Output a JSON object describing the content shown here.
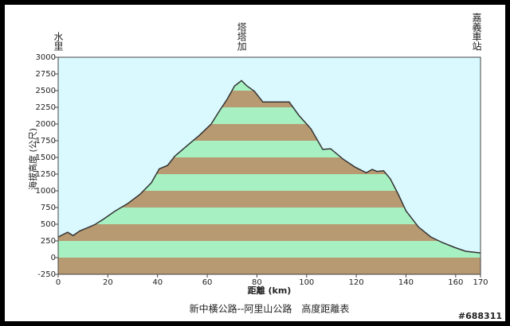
{
  "chart_data": {
    "type": "area",
    "title": "新中橫公路--阿里山公路　高度距離表",
    "x_label": "距離 (km)",
    "y_label": "海拔高度 (公尺)",
    "annotations": [
      {
        "x": 0,
        "label": "水里"
      },
      {
        "x": 73.8,
        "label": "塔塔加"
      },
      {
        "x": 170,
        "label": "嘉義車站"
      }
    ],
    "watermark": "#688311",
    "x": [
      0,
      3.8,
      6,
      8.7,
      12,
      15,
      18,
      23,
      28,
      33,
      37.5,
      40.7,
      44,
      47,
      52,
      56.8,
      61.6,
      64.8,
      68,
      71,
      73.8,
      76,
      79,
      82.4,
      85.6,
      93,
      96.9,
      101.7,
      106.5,
      109.7,
      114.5,
      119.3,
      124,
      126.4,
      128.3,
      131,
      133.7,
      137,
      140,
      145,
      150,
      154.6,
      159.4,
      164,
      170
    ],
    "values": [
      310,
      380,
      330,
      400,
      450,
      500,
      570,
      700,
      810,
      950,
      1120,
      1330,
      1380,
      1520,
      1680,
      1830,
      2000,
      2190,
      2370,
      2570,
      2650,
      2570,
      2490,
      2330,
      2330,
      2330,
      2130,
      1930,
      1620,
      1630,
      1480,
      1360,
      1270,
      1320,
      1290,
      1300,
      1180,
      940,
      700,
      460,
      310,
      226,
      155,
      95,
      70
    ],
    "line_color": "#333333",
    "band_colors": [
      "#b89a72",
      "#a6f0c2"
    ],
    "background": "#d9f9ff",
    "xlim": [
      0,
      170
    ],
    "xticks": [
      0,
      20,
      40,
      60,
      80,
      100,
      120,
      140,
      160,
      170
    ],
    "ylim": [
      -250,
      3000
    ],
    "yticks": [
      -250,
      0,
      250,
      500,
      750,
      1000,
      1250,
      1500,
      1750,
      2000,
      2250,
      2500,
      2750,
      3000
    ]
  }
}
